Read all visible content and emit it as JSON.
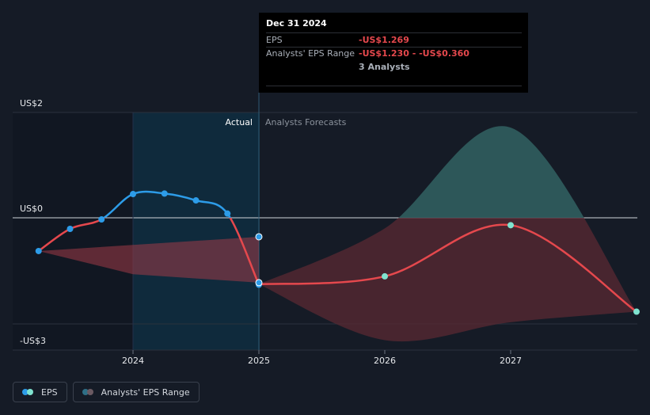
{
  "tooltip": {
    "date": "Dec 31 2024",
    "rows": [
      {
        "label": "EPS",
        "value": "-US$1.269"
      },
      {
        "label": "Analysts' EPS Range",
        "value": "-US$1.230 - -US$0.360"
      }
    ],
    "analysts": "3 Analysts"
  },
  "legend": {
    "eps": {
      "label": "EPS",
      "colors": [
        "#2d9ce8",
        "#7fe3cf"
      ]
    },
    "range": {
      "label": "Analysts' EPS Range",
      "colors": [
        "#2f6f86",
        "#6b5a62"
      ]
    }
  },
  "colors": {
    "actual_line": "#2d9ce8",
    "negative_line": "#e5484d",
    "forecast_marker": "#7fe3cf",
    "range_positive": "#2e5b5c",
    "range_negative": "#5a2a33",
    "past_highlight": "#0f2a3c"
  },
  "chart_data": {
    "type": "line",
    "region_labels": {
      "actual": "Actual",
      "forecast": "Analysts Forecasts"
    },
    "y_ticks": [
      {
        "value": 2,
        "label": "US$2"
      },
      {
        "value": 0,
        "label": "US$0"
      },
      {
        "value": -3,
        "label": "-US$3"
      }
    ],
    "x_ticks": [
      {
        "value": 2024.0,
        "label": "2024"
      },
      {
        "value": 2025.0,
        "label": "2025"
      },
      {
        "value": 2026.0,
        "label": "2026"
      },
      {
        "value": 2027.0,
        "label": "2027"
      }
    ],
    "xlim": [
      2022.8,
      2029.95
    ],
    "ylim": [
      -2.5,
      2.0
    ],
    "actual_eps": [
      {
        "x": 2023.25,
        "y": -0.63
      },
      {
        "x": 2023.5,
        "y": -0.21
      },
      {
        "x": 2023.75,
        "y": -0.03
      },
      {
        "x": 2024.0,
        "y": 0.45
      },
      {
        "x": 2024.25,
        "y": 0.46
      },
      {
        "x": 2024.5,
        "y": 0.33
      },
      {
        "x": 2024.75,
        "y": 0.08
      },
      {
        "x": 2025.0,
        "y": -1.269
      }
    ],
    "forecast_eps": [
      {
        "x": 2025.0,
        "y": -1.26
      },
      {
        "x": 2026.0,
        "y": -1.11
      },
      {
        "x": 2027.0,
        "y": -0.14
      },
      {
        "x": 2028.0,
        "y": -1.78
      }
    ],
    "past_range": {
      "upper": [
        {
          "x": 2023.25,
          "y": -0.63
        },
        {
          "x": 2025.0,
          "y": -0.36
        }
      ],
      "lower": [
        {
          "x": 2023.25,
          "y": -0.63
        },
        {
          "x": 2024.0,
          "y": -1.07
        },
        {
          "x": 2025.0,
          "y": -1.23
        }
      ]
    },
    "forecast_range": {
      "upper": [
        {
          "x": 2025.0,
          "y": -1.26
        },
        {
          "x": 2026.0,
          "y": -0.2
        },
        {
          "x": 2027.0,
          "y": 1.71
        },
        {
          "x": 2028.0,
          "y": -1.78
        }
      ],
      "lower": [
        {
          "x": 2025.0,
          "y": -1.26
        },
        {
          "x": 2026.0,
          "y": -2.32
        },
        {
          "x": 2027.0,
          "y": -1.98
        },
        {
          "x": 2028.0,
          "y": -1.78
        }
      ]
    },
    "markers": [
      {
        "x": 2025.0,
        "y": -0.36,
        "kind": "past"
      },
      {
        "x": 2025.0,
        "y": -1.23,
        "kind": "past"
      },
      {
        "x": 2026.0,
        "y": -1.11,
        "kind": "forecast"
      },
      {
        "x": 2027.0,
        "y": -0.14,
        "kind": "forecast"
      },
      {
        "x": 2028.0,
        "y": -1.78,
        "kind": "forecast"
      }
    ]
  }
}
